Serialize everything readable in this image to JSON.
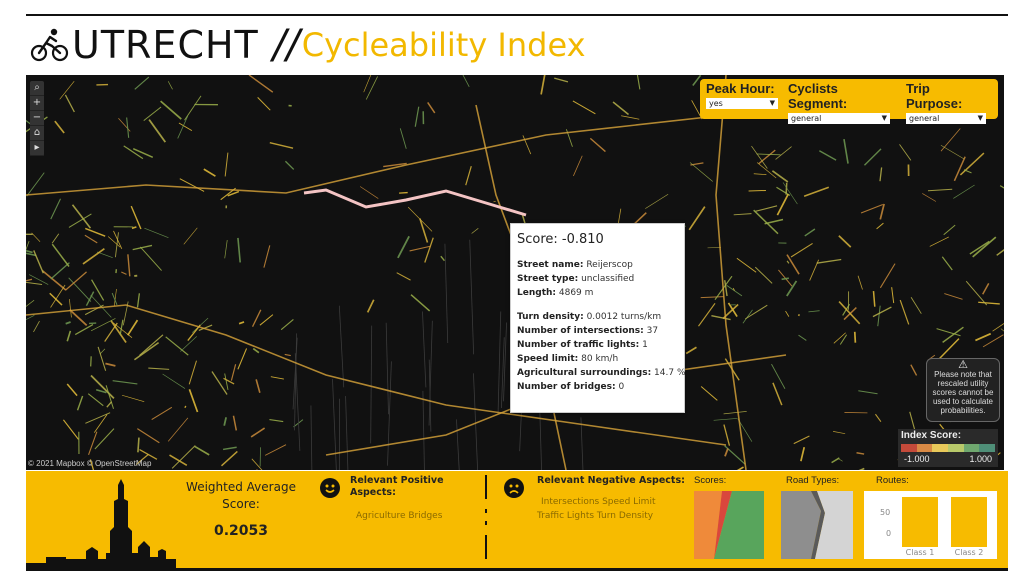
{
  "header": {
    "city": "UTRECHT",
    "separator": "//",
    "subtitle": "Cycleability Index"
  },
  "filters": [
    {
      "label": "Peak Hour:",
      "value": "yes"
    },
    {
      "label": "Cyclists Segment:",
      "value": "general"
    },
    {
      "label": "Trip Purpose:",
      "value": "general"
    }
  ],
  "map": {
    "attribution": "© 2021 Mapbox © OpenStreetMap",
    "controls": [
      "⌕",
      "+",
      "−",
      "⌂",
      "▸"
    ]
  },
  "tooltip": {
    "score": "Score: -0.810",
    "street_name_label": "Street name:",
    "street_name": "Reijerscop",
    "street_type_label": "Street type:",
    "street_type": "unclassified",
    "length_label": "Length:",
    "length": "4869 m",
    "turn_density_label": "Turn density:",
    "turn_density": "0.0012 turns/km",
    "intersections_label": "Number of intersections:",
    "intersections": "37",
    "traffic_lights_label": "Number of traffic lights:",
    "traffic_lights": "1",
    "speed_limit_label": "Speed limit:",
    "speed_limit": "80 km/h",
    "agri_label": "Agricultural surroundings:",
    "agri": "14.7 %",
    "bridges_label": "Number of bridges:",
    "bridges": "0"
  },
  "note": {
    "icon": "warning-icon",
    "text": "Please note that rescaled utility scores cannot be used to calculate probabilities."
  },
  "legend": {
    "title": "Index Score:",
    "min": "-1.000",
    "max": "1.000",
    "colors": [
      "#c44a3a",
      "#d98a45",
      "#e8c95a",
      "#b8c96a",
      "#6fa86f",
      "#4f8f78"
    ]
  },
  "footer": {
    "weighted_label": "Weighted Average Score:",
    "weighted_value": "0.2053",
    "positive_title": "Relevant Positive Aspects:",
    "positive_items": "Agriculture  Bridges",
    "negative_title": "Relevant Negative Aspects:",
    "negative_line1": "Intersections  Speed Limit",
    "negative_line2": "Traffic Lights  Turn Density",
    "scores_title": "Scores:",
    "road_types_title": "Road Types:",
    "routes_title": "Routes:",
    "routes_y_ticks": [
      "50",
      "0"
    ],
    "routes_classes": [
      "Class 1",
      "Class 2"
    ]
  },
  "colors": {
    "accent": "#f7bb00",
    "title_yellow": "#f2b800"
  }
}
